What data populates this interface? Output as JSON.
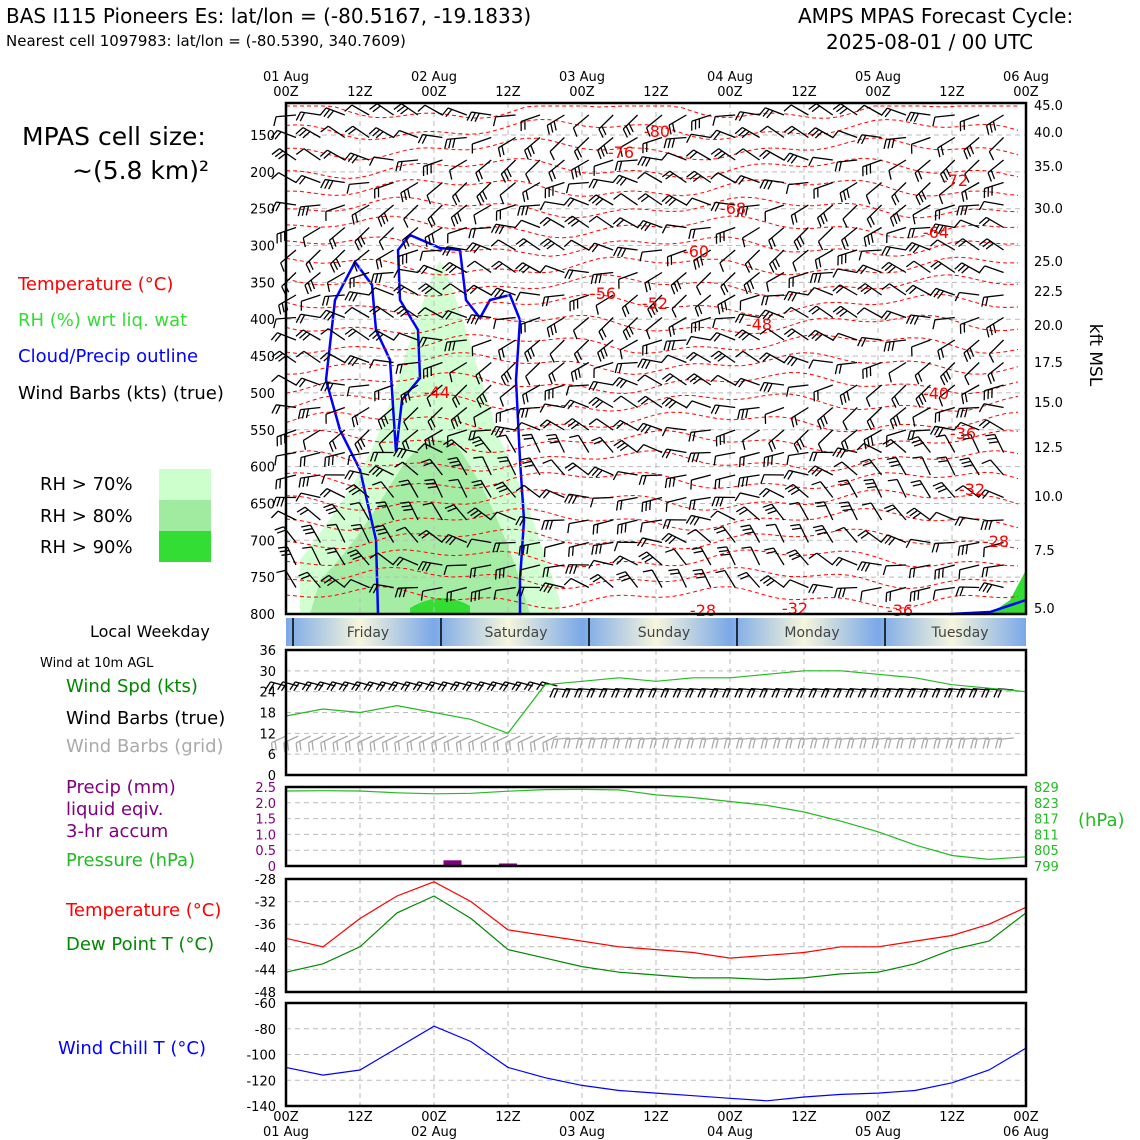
{
  "header": {
    "station_title": "BAS I115 Pioneers Es: lat/lon = (-80.5167, -19.1833)",
    "nearest_cell": "Nearest cell 1097983: lat/lon = (-80.5390, 340.7609)",
    "forecast_title": "AMPS MPAS Forecast Cycle:",
    "forecast_cycle": "2025-08-01 / 00 UTC"
  },
  "left_legend": {
    "cell_size_label": "MPAS cell size:",
    "cell_size_value": "~(5.8 km)²",
    "temperature": "Temperature (°C)",
    "rh": "RH (%) wrt liq. wat",
    "cloud": "Cloud/Precip outline",
    "wind": "Wind Barbs (kts) (true)",
    "rh70": "RH > 70%",
    "rh80": "RH > 80%",
    "rh90": "RH > 90%",
    "weekday_label": "Local Weekday",
    "wind10m_label": "Wind at 10m AGL",
    "wind_spd": "Wind Spd (kts)",
    "wind_barbs_true": "Wind Barbs (true)",
    "wind_barbs_grid": "Wind Barbs (grid)",
    "precip1": "Precip (mm)",
    "precip2": "liquid eqiv.",
    "precip3": "3-hr accum",
    "pressure": "Pressure (hPa)",
    "temp2": "Temperature (°C)",
    "dewpoint": "Dew Point T (°C)",
    "windchill": "Wind Chill T (°C)"
  },
  "colors": {
    "temperature": "#ff0000",
    "rh": "#33dd33",
    "cloud": "#0000ff",
    "wind": "#000000",
    "wind_grid": "#aaaaaa",
    "pressure": "#22bb22",
    "precip": "#800080",
    "dewpoint": "#008800",
    "windchill": "#0000ff",
    "rh70": "#ccffcc",
    "rh80": "#a0eba0",
    "rh90": "#33dd33"
  },
  "chart_data": [
    {
      "type": "heatmap",
      "name": "vertical-profile",
      "y_axis_left": [
        "150",
        "200",
        "250",
        "300",
        "350",
        "400",
        "450",
        "500",
        "550",
        "600",
        "650",
        "700",
        "750",
        "800"
      ],
      "y_axis_right": [
        "45.0",
        "40.0",
        "35.0",
        "30.0",
        "25.0",
        "22.5",
        "20.0",
        "17.5",
        "15.0",
        "12.5",
        "10.0",
        "7.5",
        "5.0"
      ],
      "right_axis_label": "kft MSL",
      "top_ticks_day": [
        "01 Aug",
        "",
        "02 Aug",
        "",
        "03 Aug",
        "",
        "04 Aug",
        "",
        "05 Aug",
        "",
        "06 Aug"
      ],
      "top_ticks_hour": [
        "00Z",
        "12Z",
        "00Z",
        "12Z",
        "00Z",
        "12Z",
        "00Z",
        "12Z",
        "00Z",
        "12Z",
        "00Z"
      ],
      "temperature_labels": [
        "-80",
        "-76",
        "-72",
        "-68",
        "-64",
        "-60",
        "-56",
        "-52",
        "-48",
        "-44",
        "-40",
        "-36",
        "-32",
        "-28",
        "-28",
        "-32",
        "-36"
      ],
      "weekdays": [
        "Friday",
        "Saturday",
        "Sunday",
        "Monday",
        "Tuesday"
      ]
    },
    {
      "type": "line",
      "name": "wind-10m",
      "y_ticks": [
        "36",
        "30",
        "24",
        "18",
        "12",
        "6",
        "0"
      ],
      "ylim": [
        0,
        36
      ],
      "hours": [
        0,
        6,
        12,
        18,
        24,
        30,
        36,
        42,
        48,
        54,
        60,
        66,
        72,
        78,
        84,
        90,
        96,
        102,
        108,
        114,
        120
      ],
      "wind_speed": [
        17,
        19,
        18,
        20,
        18,
        16,
        12,
        26,
        27,
        28,
        27,
        28,
        28,
        29,
        30,
        30,
        29,
        28,
        26,
        25,
        24
      ]
    },
    {
      "type": "bar",
      "name": "precip-pressure",
      "y_ticks_left": [
        "2.5",
        "2.0",
        "1.5",
        "1.0",
        "0.5",
        "0"
      ],
      "y_ticks_right": [
        "829",
        "823",
        "817",
        "811",
        "805",
        "799"
      ],
      "right_unit": "(hPa)",
      "precip_hours": [
        27,
        36
      ],
      "precip_values": [
        0.18,
        0.08
      ],
      "pressure_hours": [
        0,
        6,
        12,
        18,
        24,
        30,
        36,
        42,
        48,
        54,
        60,
        66,
        72,
        78,
        84,
        90,
        96,
        102,
        108,
        114,
        120
      ],
      "pressure_values": [
        827.5,
        827.6,
        827.5,
        826.8,
        826.4,
        826.6,
        827.4,
        828.0,
        828.1,
        827.9,
        826.0,
        825.0,
        823.5,
        822.0,
        819.5,
        816.0,
        812.0,
        807.0,
        803.0,
        801.5,
        802.5
      ]
    },
    {
      "type": "line",
      "name": "temperature-dewpoint",
      "y_ticks": [
        "-28",
        "-32",
        "-36",
        "-40",
        "-44",
        "-48"
      ],
      "ylim": [
        -48,
        -28
      ],
      "hours": [
        0,
        6,
        12,
        18,
        24,
        30,
        36,
        42,
        48,
        54,
        60,
        66,
        72,
        78,
        84,
        90,
        96,
        102,
        108,
        114,
        120
      ],
      "temperature": [
        -38.5,
        -40,
        -35,
        -31,
        -28.5,
        -32,
        -37,
        -38,
        -39,
        -40,
        -40.5,
        -41,
        -42,
        -41.5,
        -41,
        -40,
        -40,
        -39,
        -38,
        -36,
        -33
      ],
      "dewpoint": [
        -44.5,
        -43,
        -40,
        -34,
        -31,
        -35,
        -40.5,
        -42,
        -43.5,
        -44.5,
        -45,
        -45.5,
        -45.5,
        -45.8,
        -45.5,
        -44.8,
        -44.5,
        -43,
        -40.5,
        -39,
        -34
      ]
    },
    {
      "type": "line",
      "name": "wind-chill",
      "y_ticks": [
        "-60",
        "-80",
        "-100",
        "-120",
        "-140"
      ],
      "ylim": [
        -140,
        -60
      ],
      "hours": [
        0,
        6,
        12,
        18,
        24,
        30,
        36,
        42,
        48,
        54,
        60,
        66,
        72,
        78,
        84,
        90,
        96,
        102,
        108,
        114,
        120
      ],
      "wind_chill": [
        -110,
        -116,
        -112,
        -95,
        -78,
        -90,
        -110,
        -118,
        -124,
        -128,
        -130,
        -132,
        -134,
        -136,
        -133,
        -131,
        -130,
        -128,
        -122,
        -112,
        -95
      ],
      "bottom_ticks_hour": [
        "00Z",
        "12Z",
        "00Z",
        "12Z",
        "00Z",
        "12Z",
        "00Z",
        "12Z",
        "00Z",
        "12Z",
        "00Z"
      ],
      "bottom_ticks_day": [
        "01 Aug",
        "",
        "02 Aug",
        "",
        "03 Aug",
        "",
        "04 Aug",
        "",
        "05 Aug",
        "",
        "06 Aug"
      ]
    }
  ]
}
